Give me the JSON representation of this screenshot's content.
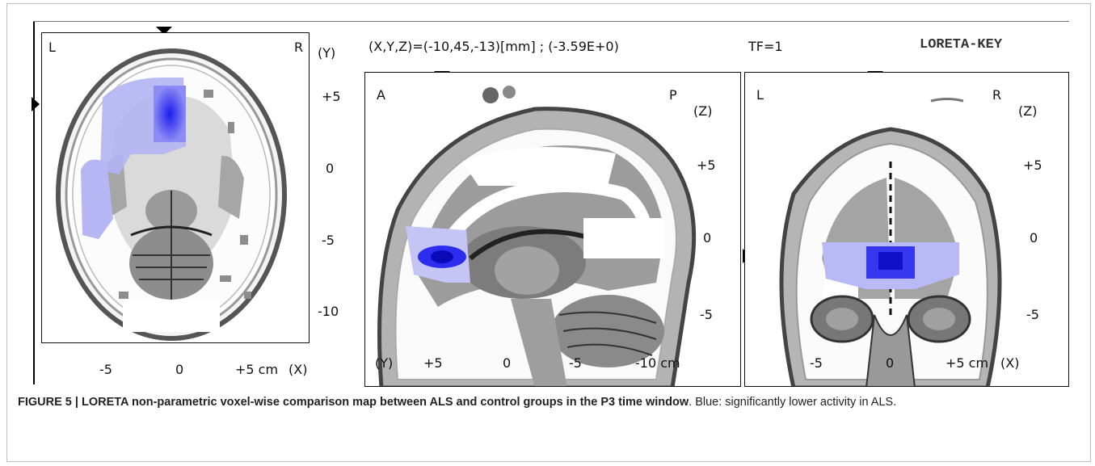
{
  "header": {
    "coords": "(X,Y,Z)=(-10,45,-13)[mm] ; (-3.59E+0)",
    "tf": "TF=1",
    "brand": "LORETA-KEY"
  },
  "axial": {
    "left": "L",
    "right": "R",
    "axis_name": "(Y)",
    "y_ticks": [
      "+5",
      "0",
      "-5",
      "-10"
    ],
    "x_ticks": [
      "-5",
      "0",
      "+5 cm"
    ],
    "x_axis_name": "(X)"
  },
  "sagittal": {
    "left": "A",
    "right": "P",
    "axis_name": "(Z)",
    "z_ticks": [
      "+5",
      "0",
      "-5"
    ],
    "y_axis_name": "(Y)",
    "y_ticks": [
      "+5",
      "0",
      "-5",
      "-10 cm"
    ]
  },
  "coronal": {
    "left": "L",
    "right": "R",
    "axis_name": "(Z)",
    "z_ticks": [
      "+5",
      "0",
      "-5"
    ],
    "x_ticks": [
      "-5",
      "0",
      "+5 cm"
    ],
    "x_axis_name": "(X)"
  },
  "caption": {
    "lead": "FIGURE 5 | LORETA non-parametric voxel-wise comparison map between ALS and control groups in the P3 time window",
    "rest": ". Blue: significantly lower activity in ALS."
  },
  "colors": {
    "activation": "#3b3bf0",
    "activation_light": "#c9c9f7",
    "brain": "#8d8d8d"
  }
}
